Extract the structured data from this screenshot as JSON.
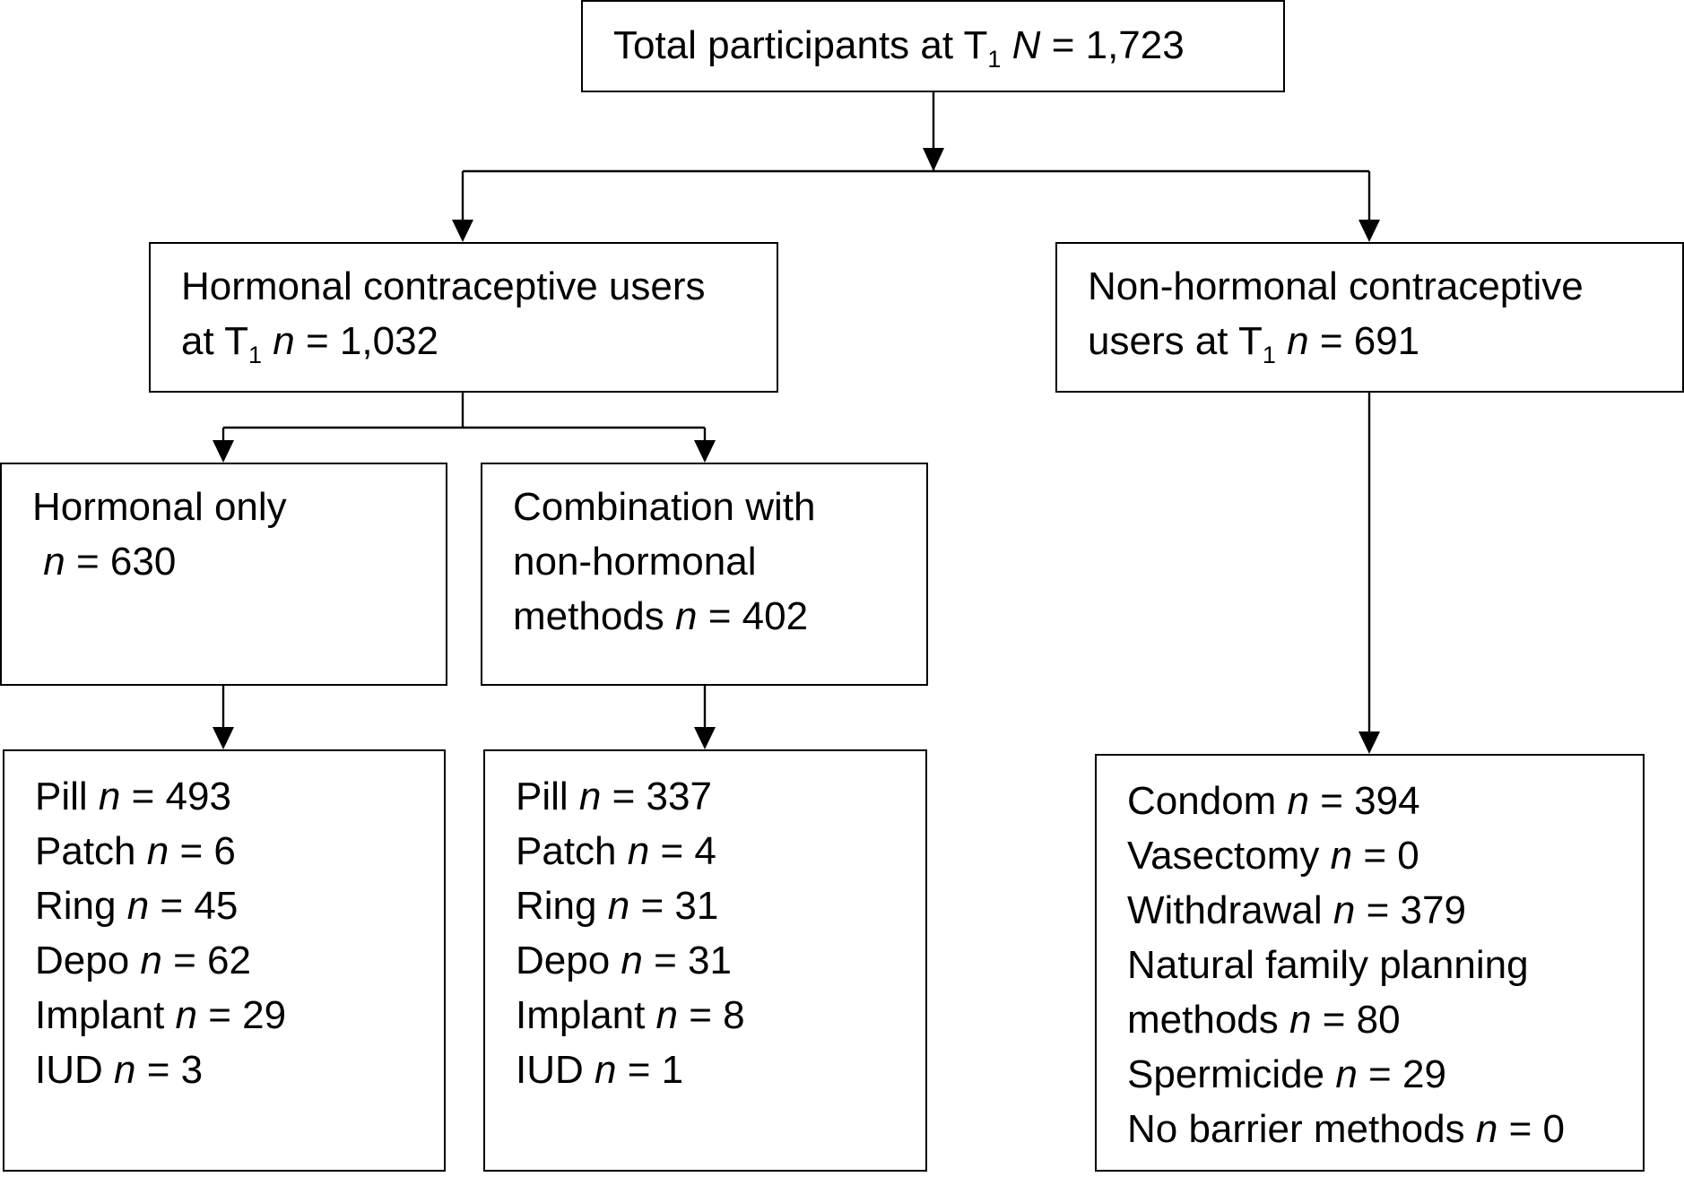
{
  "total": {
    "label": "Total participants at T",
    "sub": "1",
    "stat": "N",
    "value": "= 1,723"
  },
  "hormonal": {
    "line1": "Hormonal contraceptive users",
    "line2_prefix": "at T",
    "sub": "1",
    "stat": "n",
    "value": "= 1,032"
  },
  "nonhormonal": {
    "line1": "Non-hormonal contraceptive",
    "line2_prefix": "users at T",
    "sub": "1",
    "stat": "n",
    "value": "= 691"
  },
  "hormonal_only": {
    "line1": "Hormonal only",
    "stat": "n",
    "value": "= 630"
  },
  "combination": {
    "line1": "Combination with",
    "line2": "non-hormonal",
    "line3_prefix": "methods",
    "stat": "n",
    "value": "= 402"
  },
  "hormonal_only_methods": [
    {
      "method": "Pill",
      "stat": "n",
      "value": "= 493"
    },
    {
      "method": "Patch",
      "stat": "n",
      "value": "= 6"
    },
    {
      "method": "Ring",
      "stat": "n",
      "value": "= 45"
    },
    {
      "method": "Depo",
      "stat": "n",
      "value": "= 62"
    },
    {
      "method": "Implant",
      "stat": "n",
      "value": "= 29"
    },
    {
      "method": "IUD",
      "stat": "n",
      "value": "= 3"
    }
  ],
  "combination_methods": [
    {
      "method": "Pill",
      "stat": "n",
      "value": "= 337"
    },
    {
      "method": "Patch",
      "stat": "n",
      "value": "= 4"
    },
    {
      "method": "Ring",
      "stat": "n",
      "value": "= 31"
    },
    {
      "method": "Depo",
      "stat": "n",
      "value": "= 31"
    },
    {
      "method": "Implant",
      "stat": "n",
      "value": "= 8"
    },
    {
      "method": "IUD",
      "stat": "n",
      "value": "= 1"
    }
  ],
  "nonhormonal_methods": {
    "condom": {
      "method": "Condom",
      "stat": "n",
      "value": "= 394"
    },
    "vasectomy": {
      "method": "Vasectomy",
      "stat": "n",
      "value": "= 0"
    },
    "withdrawal": {
      "method": "Withdrawal",
      "stat": "n",
      "value": "= 379"
    },
    "nfp": {
      "line1": "Natural family planning",
      "line2_prefix": "methods",
      "stat": "n",
      "value": "= 80"
    },
    "spermicide": {
      "method": "Spermicide",
      "stat": "n",
      "value": "= 29"
    },
    "no_barrier": {
      "method": "No barrier methods",
      "stat": "n",
      "value": "= 0"
    }
  }
}
